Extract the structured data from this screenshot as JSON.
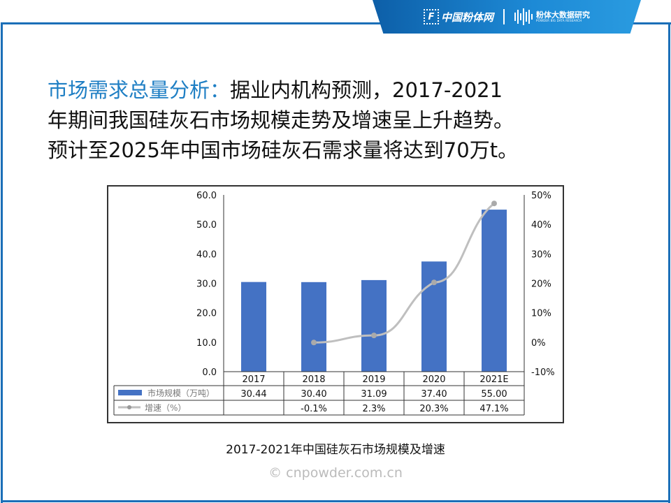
{
  "banner": {
    "logo1": "中国粉体网",
    "logo2_title": "粉体大数据研究",
    "logo2_subtitle": "POWDER BIG DATA RESEARCH"
  },
  "headline": {
    "highlight": "市场需求总量分析：",
    "line1_rest": "据业内机构预测，2017-2021",
    "line2": "年期间我国硅灰石市场规模走势及增速呈上升趋势。",
    "line3": "预计至2025年中国市场硅灰石需求量将达到70万t。"
  },
  "chart_data": {
    "type": "bar",
    "categories": [
      "2017",
      "2018",
      "2019",
      "2020",
      "2021E"
    ],
    "series": [
      {
        "name": "市场规模（万吨）",
        "type": "bar",
        "axis": "left",
        "color": "#4472c4",
        "values": [
          30.44,
          30.4,
          31.09,
          37.4,
          55.0
        ],
        "labels": [
          "30.44",
          "30.40",
          "31.09",
          "37.40",
          "55.00"
        ]
      },
      {
        "name": "增速（%）",
        "type": "line",
        "axis": "right",
        "color": "#bfbfbf",
        "values": [
          null,
          -0.1,
          2.3,
          20.3,
          47.1
        ],
        "labels": [
          "",
          "-0.1%",
          "2.3%",
          "20.3%",
          "47.1%"
        ]
      }
    ],
    "y_left": {
      "ylim": [
        0,
        60
      ],
      "ticks": [
        "0.0",
        "10.0",
        "20.0",
        "30.0",
        "40.0",
        "50.0",
        "60.0"
      ]
    },
    "y_right": {
      "ylim": [
        -10,
        50
      ],
      "ticks": [
        "-10%",
        "0%",
        "10%",
        "20%",
        "30%",
        "40%",
        "50%"
      ]
    },
    "grid": false,
    "legend": "data-table"
  },
  "caption": "2017-2021年中国硅灰石市场规模及增速",
  "watermark": "© cnpowder.com.cn"
}
